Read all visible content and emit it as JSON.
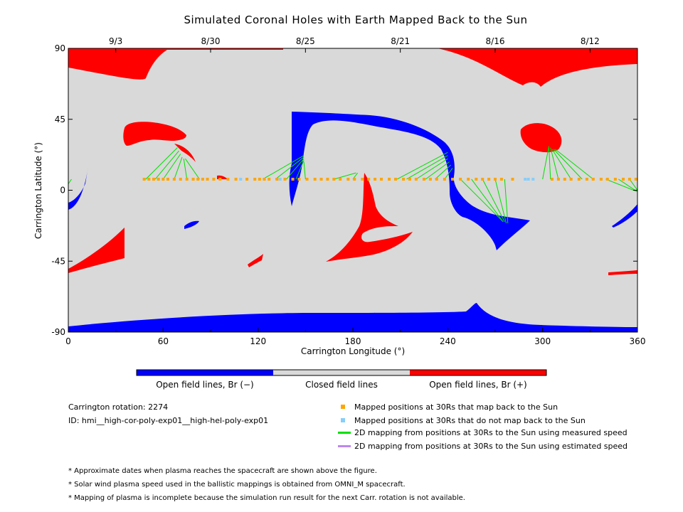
{
  "chart_data": {
    "type": "map",
    "title": "Simulated Coronal Holes with Earth Mapped Back to the Sun",
    "xlabel": "Carrington Longitude (°)",
    "ylabel": "Carrington Latitude (°)",
    "xlim": [
      0,
      360
    ],
    "ylim": [
      -90,
      90
    ],
    "x_ticks": [
      "0",
      "60",
      "120",
      "180",
      "240",
      "300",
      "360"
    ],
    "y_ticks": [
      "90",
      "45",
      "0",
      "-45",
      "-90"
    ],
    "date_ticks": [
      {
        "lon": 30,
        "label": "9/3"
      },
      {
        "lon": 90,
        "label": "8/30"
      },
      {
        "lon": 150,
        "label": "8/25"
      },
      {
        "lon": 210,
        "label": "8/21"
      },
      {
        "lon": 270,
        "label": "8/16"
      },
      {
        "lon": 330,
        "label": "8/12"
      }
    ],
    "colorbar": [
      {
        "label": "Open field lines, Br (−)",
        "color": "#0000ff"
      },
      {
        "label": "Closed field lines",
        "color": "#d9d9d9"
      },
      {
        "label": "Open field lines, Br (+)",
        "color": "#ff0000"
      }
    ],
    "mapped_points_lat": 7,
    "mapped_points_lon": [
      48,
      51,
      54,
      57,
      60,
      63,
      67,
      71,
      75,
      79,
      82,
      85,
      88,
      92,
      96,
      101,
      106,
      113,
      118,
      121,
      124,
      127,
      132,
      137,
      142,
      146,
      151,
      156,
      160,
      164,
      168,
      172,
      177,
      181,
      186,
      190,
      194,
      198,
      203,
      207,
      212,
      216,
      220,
      225,
      229,
      233,
      238,
      243,
      248,
      253,
      258,
      262,
      266,
      270,
      274,
      281,
      306,
      310,
      314,
      318,
      323,
      328,
      332,
      337,
      341,
      346,
      351,
      355,
      359
    ],
    "unmapped_points_lon": [
      109,
      134,
      289,
      291,
      294
    ],
    "mapping_lines": [
      {
        "from": [
          49,
          7
        ],
        "to": [
          69,
          27
        ]
      },
      {
        "from": [
          55,
          7
        ],
        "to": [
          70,
          25
        ]
      },
      {
        "from": [
          60,
          7
        ],
        "to": [
          71,
          23
        ]
      },
      {
        "from": [
          67,
          7
        ],
        "to": [
          72,
          21
        ]
      },
      {
        "from": [
          75,
          7
        ],
        "to": [
          73,
          20
        ]
      },
      {
        "from": [
          83,
          7
        ],
        "to": [
          74,
          20
        ]
      },
      {
        "from": [
          123,
          7
        ],
        "to": [
          149,
          22
        ]
      },
      {
        "from": [
          131,
          7
        ],
        "to": [
          149,
          21
        ]
      },
      {
        "from": [
          138,
          7
        ],
        "to": [
          149,
          20
        ]
      },
      {
        "from": [
          144,
          7
        ],
        "to": [
          149,
          19
        ]
      },
      {
        "from": [
          150,
          7
        ],
        "to": [
          149,
          18
        ]
      },
      {
        "from": [
          168,
          7
        ],
        "to": [
          182,
          11
        ]
      },
      {
        "from": [
          180,
          7
        ],
        "to": [
          183,
          11
        ]
      },
      {
        "from": [
          208,
          7
        ],
        "to": [
          240,
          24
        ]
      },
      {
        "from": [
          214,
          7
        ],
        "to": [
          240,
          22
        ]
      },
      {
        "from": [
          220,
          7
        ],
        "to": [
          240,
          20
        ]
      },
      {
        "from": [
          226,
          7
        ],
        "to": [
          241,
          18
        ]
      },
      {
        "from": [
          232,
          7
        ],
        "to": [
          242,
          16
        ]
      },
      {
        "from": [
          238,
          7
        ],
        "to": [
          243,
          14
        ]
      },
      {
        "from": [
          248,
          7
        ],
        "to": [
          275,
          -20
        ]
      },
      {
        "from": [
          255,
          7
        ],
        "to": [
          275,
          -20
        ]
      },
      {
        "from": [
          262,
          7
        ],
        "to": [
          276,
          -20
        ]
      },
      {
        "from": [
          270,
          7
        ],
        "to": [
          277,
          -21
        ]
      },
      {
        "from": [
          276,
          7
        ],
        "to": [
          278,
          -21
        ]
      },
      {
        "from": [
          300,
          7
        ],
        "to": [
          304,
          28
        ]
      },
      {
        "from": [
          305,
          7
        ],
        "to": [
          304,
          27
        ]
      },
      {
        "from": [
          310,
          7
        ],
        "to": [
          305,
          27
        ]
      },
      {
        "from": [
          318,
          7
        ],
        "to": [
          306,
          26
        ]
      },
      {
        "from": [
          325,
          7
        ],
        "to": [
          307,
          26
        ]
      },
      {
        "from": [
          332,
          7
        ],
        "to": [
          308,
          26
        ]
      },
      {
        "from": [
          340,
          7
        ],
        "to": [
          360,
          -1
        ]
      },
      {
        "from": [
          348,
          7
        ],
        "to": [
          360,
          -1
        ]
      },
      {
        "from": [
          355,
          7
        ],
        "to": [
          360,
          0
        ]
      },
      {
        "from": [
          2,
          7
        ],
        "to": [
          0,
          4
        ]
      }
    ]
  },
  "legend": {
    "mapped": "Mapped positions at 30Rs that map back to the Sun",
    "unmapped": "Mapped positions at 30Rs that do not map back to the Sun",
    "measured": "2D mapping from positions at 30Rs to the Sun using measured speed",
    "estimated": "2D mapping from positions at 30Rs to the Sun using estimated speed"
  },
  "info": {
    "rotation": "Carrington rotation: 2274",
    "id": "ID: hmi__high-cor-poly-exp01__high-hel-poly-exp01"
  },
  "footnotes": [
    "* Approximate dates when plasma reaches the spacecraft are shown above the figure.",
    "* Solar wind plasma speed used in the ballistic mappings is obtained from OMNI_M spacecraft.",
    "* Mapping of plasma is incomplete because the simulation run result for the next Carr. rotation is not available."
  ],
  "colors": {
    "closed": "#d9d9d9",
    "negative": "#0000ff",
    "positive": "#ff0000",
    "mapped": "#ffa500",
    "unmapped": "#87cefa",
    "measured": "#00e000",
    "estimated": "#bb88ee"
  }
}
